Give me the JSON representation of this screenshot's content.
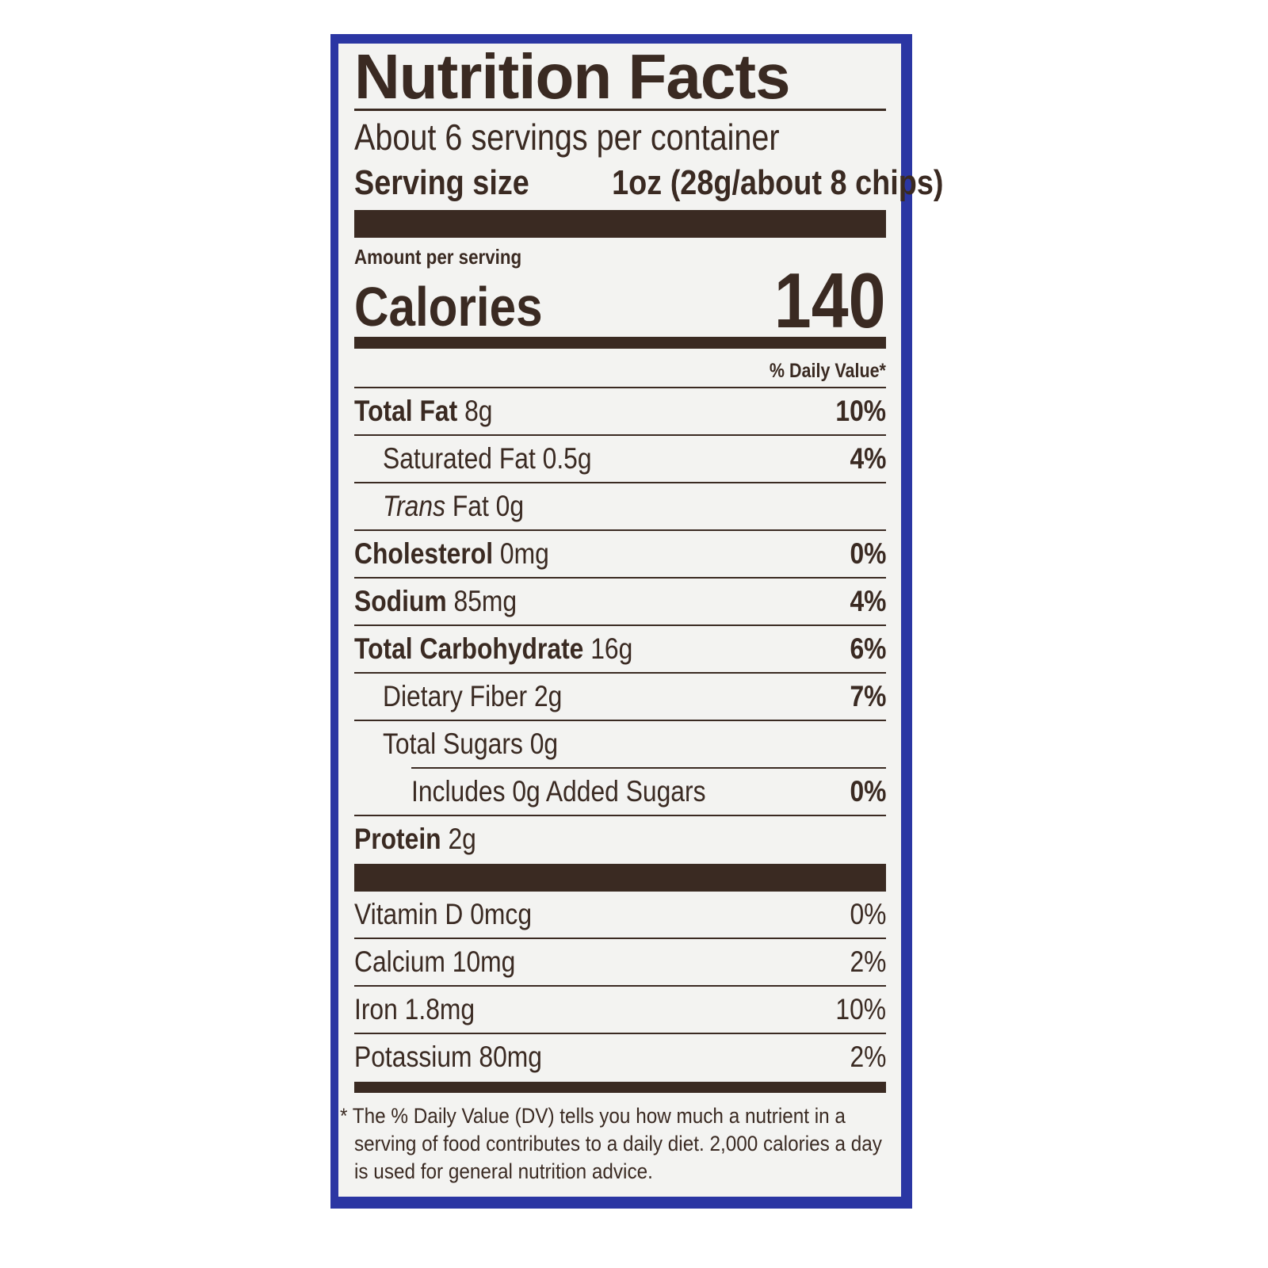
{
  "title": "Nutrition Facts",
  "servings_per_container": "About 6 servings per container",
  "serving_size": {
    "label": "Serving size",
    "value": "1oz (28g/about 8 chips)"
  },
  "amount_per_serving": "Amount per serving",
  "calories": {
    "label": "Calories",
    "value": "140"
  },
  "daily_value_header": "% Daily Value*",
  "nutrients": [
    {
      "name": "Total Fat",
      "amount": "8g",
      "dv": "10%"
    },
    {
      "name": "Saturated Fat",
      "amount": "0.5g",
      "dv": "4%"
    },
    {
      "name": "Trans",
      "name_suffix": "Fat",
      "amount": "0g",
      "dv": ""
    },
    {
      "name": "Cholesterol",
      "amount": "0mg",
      "dv": "0%"
    },
    {
      "name": "Sodium",
      "amount": "85mg",
      "dv": "4%"
    },
    {
      "name": "Total Carbohydrate",
      "amount": "16g",
      "dv": "6%"
    },
    {
      "name": "Dietary Fiber",
      "amount": "2g",
      "dv": "7%"
    },
    {
      "name": "Total Sugars",
      "amount": "0g",
      "dv": ""
    },
    {
      "name": "Includes 0g Added Sugars",
      "amount": "",
      "dv": "0%"
    },
    {
      "name": "Protein",
      "amount": "2g",
      "dv": ""
    }
  ],
  "vitamins": [
    {
      "name": "Vitamin D",
      "amount": "0mcg",
      "dv": "0%"
    },
    {
      "name": "Calcium",
      "amount": "10mg",
      "dv": "2%"
    },
    {
      "name": "Iron",
      "amount": "1.8mg",
      "dv": "10%"
    },
    {
      "name": "Potassium",
      "amount": "80mg",
      "dv": "2%"
    }
  ],
  "footnote": "* The % Daily Value (DV) tells you how much a nutrient in a serving of food contributes to a daily diet. 2,000 calories a day is used for general nutrition advice.",
  "colors": {
    "border": "#2b36a3",
    "ink": "#3a2a22",
    "background": "#f3f3f1"
  }
}
